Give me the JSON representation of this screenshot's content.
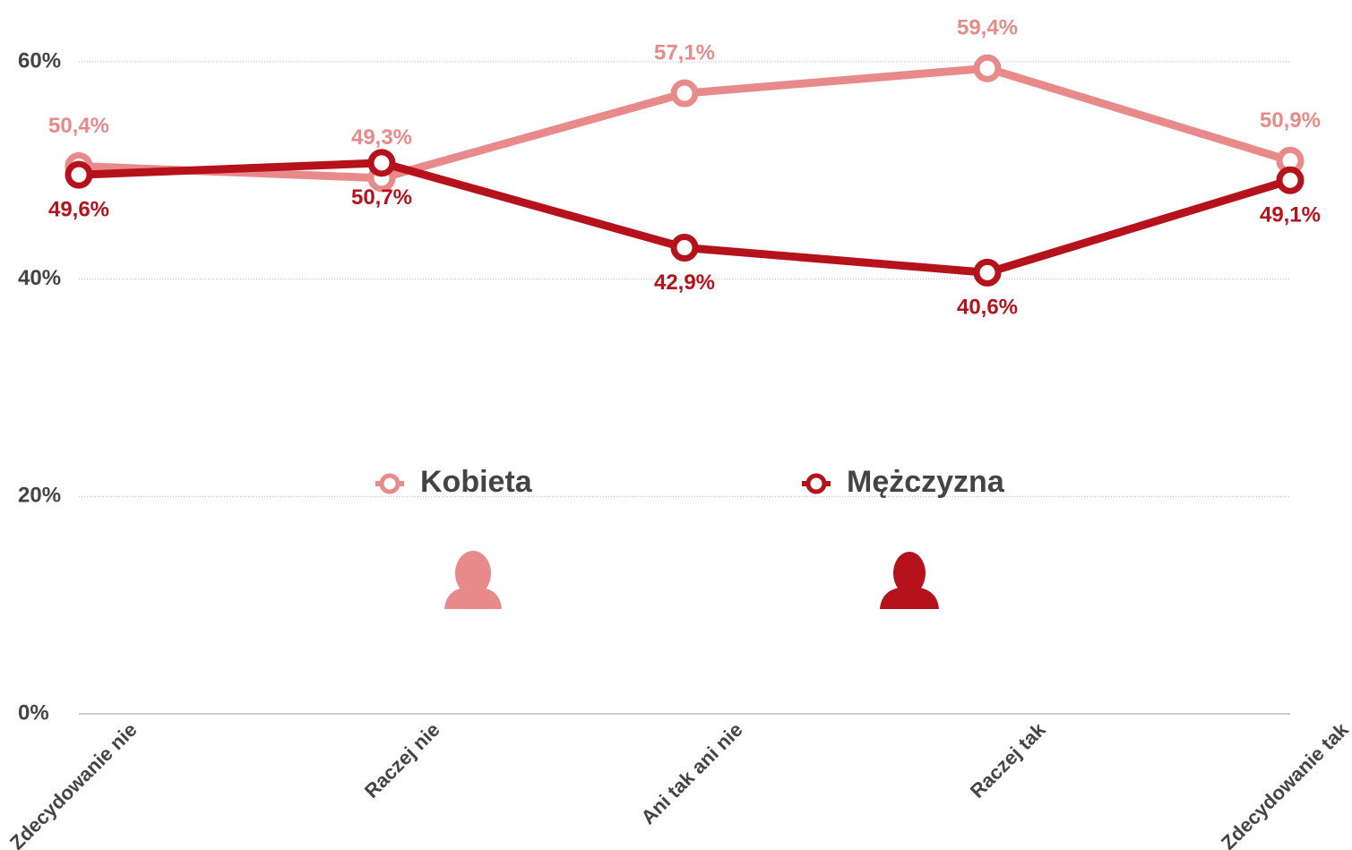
{
  "chart_data": {
    "type": "line",
    "categories": [
      "Zdecydowanie nie",
      "Raczej nie",
      "Ani tak ani nie",
      "Raczej tak",
      "Zdecydowanie tak"
    ],
    "series": [
      {
        "name": "Kobieta",
        "color": "#e8898a",
        "values": [
          50.4,
          49.3,
          57.1,
          59.4,
          50.9
        ],
        "value_labels": [
          "50,4%",
          "49,3%",
          "57,1%",
          "59,4%",
          "50,9%"
        ]
      },
      {
        "name": "Mężczyzna",
        "color": "#b5121b",
        "values": [
          49.6,
          50.7,
          42.9,
          40.6,
          49.1
        ],
        "value_labels": [
          "49,6%",
          "50,7%",
          "42,9%",
          "40,6%",
          "49,1%"
        ]
      }
    ],
    "ylim": [
      0,
      60
    ],
    "yticks": [
      {
        "value": 0,
        "label": "0%"
      },
      {
        "value": 20,
        "label": "20%"
      },
      {
        "value": 40,
        "label": "40%"
      },
      {
        "value": 60,
        "label": "60%"
      }
    ],
    "grid": true,
    "legend": "center"
  }
}
